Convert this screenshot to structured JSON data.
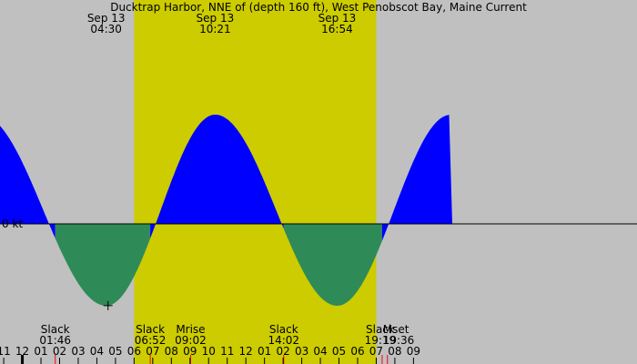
{
  "chart_data": {
    "type": "area",
    "title": "Ducktrap Harbor, NNE of (depth 160 ft), West Penobscot Bay, Maine Current",
    "ylabel": "",
    "zero_label": "0 kt",
    "x_range_hours": [
      -1.2,
      33.0
    ],
    "y_range": [
      -1.0,
      1.2
    ],
    "daylight_hours": [
      6.0,
      19.0
    ],
    "slacks": [
      1.7667,
      6.8667,
      14.0333,
      19.3167
    ],
    "extremes": [
      {
        "hour": -2.25,
        "value": 1.0
      },
      {
        "hour": 4.5,
        "value": -0.75
      },
      {
        "hour": 10.35,
        "value": 1.0
      },
      {
        "hour": 16.9,
        "value": -0.75
      },
      {
        "hour": 23.0,
        "value": 1.0
      }
    ],
    "top_labels": [
      {
        "hour": 4.5,
        "date": "Sep 13",
        "time": "04:30"
      },
      {
        "hour": 10.35,
        "date": "Sep 13",
        "time": "10:21"
      },
      {
        "hour": 16.9,
        "date": "Sep 13",
        "time": "16:54"
      }
    ],
    "bottom_events": [
      {
        "hour": 1.7667,
        "name": "Slack",
        "time": "01:46"
      },
      {
        "hour": 6.8667,
        "name": "Slack",
        "time": "06:52"
      },
      {
        "hour": 9.0333,
        "name": "Mrise",
        "time": "09:02"
      },
      {
        "hour": 14.0333,
        "name": "Slack",
        "time": "14:02"
      },
      {
        "hour": 19.3167,
        "name": "Slack",
        "time": "19:19"
      },
      {
        "hour": 19.6,
        "name": "Mset",
        "time": "19:36"
      }
    ],
    "hour_ticks": [
      {
        "hour": -1,
        "label": "11"
      },
      {
        "hour": 0,
        "label": "12"
      },
      {
        "hour": 1,
        "label": "01"
      },
      {
        "hour": 2,
        "label": "02"
      },
      {
        "hour": 3,
        "label": "03"
      },
      {
        "hour": 4,
        "label": "04"
      },
      {
        "hour": 5,
        "label": "05"
      },
      {
        "hour": 6,
        "label": "06"
      },
      {
        "hour": 7,
        "label": "07"
      },
      {
        "hour": 8,
        "label": "08"
      },
      {
        "hour": 9,
        "label": "09"
      },
      {
        "hour": 10,
        "label": "10"
      },
      {
        "hour": 11,
        "label": "11"
      },
      {
        "hour": 12,
        "label": "12"
      },
      {
        "hour": 13,
        "label": "01"
      },
      {
        "hour": 14,
        "label": "02"
      },
      {
        "hour": 15,
        "label": "03"
      },
      {
        "hour": 16,
        "label": "04"
      },
      {
        "hour": 17,
        "label": "05"
      },
      {
        "hour": 18,
        "label": "06"
      },
      {
        "hour": 19,
        "label": "07"
      },
      {
        "hour": 20,
        "label": "08"
      },
      {
        "hour": 21,
        "label": "09"
      }
    ],
    "current_time_hour": 4.6,
    "colors": {
      "background": "#c0c0c0",
      "daylight": "#cccc00",
      "flood": "#0000ff",
      "ebb": "#2e8b57",
      "axis": "#000000",
      "event_marker": "#ff0000"
    }
  }
}
